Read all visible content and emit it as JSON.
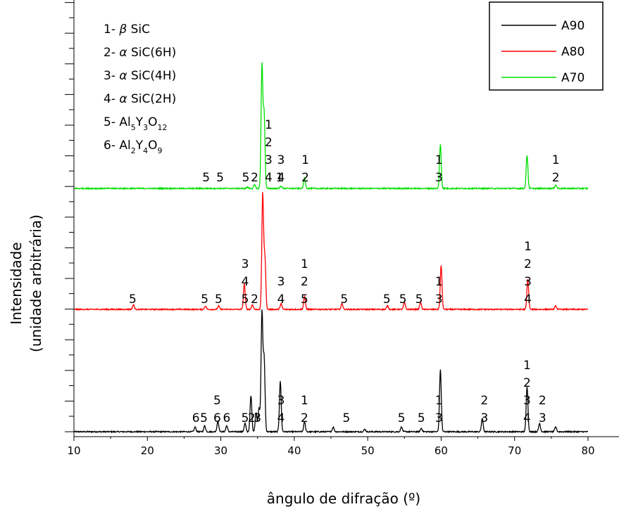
{
  "chart_data": {
    "type": "line",
    "xlabel": "ângulo de difração (º)",
    "ylabel_line1": "Intensidade",
    "ylabel_line2": "(unidade arbitrária)",
    "xlim": [
      10,
      80
    ],
    "xticks": [
      "10",
      "20",
      "30",
      "40",
      "50",
      "60",
      "70",
      "80"
    ],
    "legend": {
      "placement": "top-right"
    },
    "phase_list": [
      {
        "num": "1-",
        "greek": "β",
        "rest": "SiC"
      },
      {
        "num": "2-",
        "greek": "α",
        "rest": "SiC(6H)"
      },
      {
        "num": "3-",
        "greek": "α",
        "rest": "SiC(4H)"
      },
      {
        "num": "4-",
        "greek": "α",
        "rest": "SiC(2H)"
      },
      {
        "num": "5-",
        "formula": [
          [
            "Al",
            ""
          ],
          [
            "5",
            "sub"
          ],
          [
            "Y",
            ""
          ],
          [
            "3",
            "sub"
          ],
          [
            "O",
            ""
          ],
          [
            "12",
            "sub"
          ]
        ]
      },
      {
        "num": "6-",
        "formula": [
          [
            "Al",
            ""
          ],
          [
            "2",
            "sub"
          ],
          [
            "Y",
            ""
          ],
          [
            "4",
            "sub"
          ],
          [
            "O",
            ""
          ],
          [
            "9",
            "sub"
          ]
        ]
      }
    ],
    "series": [
      {
        "name": "A90",
        "color": "#000000",
        "peaks": [
          [
            26.5,
            0.04
          ],
          [
            27.8,
            0.05
          ],
          [
            29.6,
            0.09
          ],
          [
            30.8,
            0.05
          ],
          [
            33.3,
            0.07
          ],
          [
            34.1,
            0.3
          ],
          [
            34.8,
            0.16
          ],
          [
            35.2,
            0.2
          ],
          [
            35.6,
            1.0
          ],
          [
            35.9,
            0.6
          ],
          [
            38.1,
            0.42
          ],
          [
            41.4,
            0.08
          ],
          [
            45.3,
            0.04
          ],
          [
            49.6,
            0.02
          ],
          [
            54.6,
            0.04
          ],
          [
            57.3,
            0.03
          ],
          [
            59.9,
            0.52
          ],
          [
            65.6,
            0.11
          ],
          [
            71.7,
            0.38
          ],
          [
            73.4,
            0.07
          ],
          [
            75.6,
            0.04
          ]
        ],
        "labels": [
          [
            26.6,
            "6"
          ],
          [
            27.7,
            "5"
          ],
          [
            29.5,
            "6"
          ],
          [
            29.5,
            "5"
          ],
          [
            30.8,
            "6"
          ],
          [
            33.3,
            "5"
          ],
          [
            34.2,
            "2"
          ],
          [
            35.0,
            "3"
          ],
          [
            38.2,
            "4"
          ],
          [
            38.2,
            "3"
          ],
          [
            41.4,
            "2"
          ],
          [
            41.4,
            "1"
          ],
          [
            47.1,
            "5"
          ],
          [
            54.6,
            "5"
          ],
          [
            57.3,
            "5"
          ],
          [
            59.7,
            "3"
          ],
          [
            59.7,
            "1"
          ],
          [
            65.9,
            "3"
          ],
          [
            65.9,
            "2"
          ],
          [
            71.7,
            "4"
          ],
          [
            71.7,
            "3"
          ],
          [
            71.7,
            "2"
          ],
          [
            71.7,
            "1"
          ],
          [
            73.8,
            "3"
          ],
          [
            73.8,
            "2"
          ]
        ]
      },
      {
        "name": "A80",
        "color": "#ff0000",
        "peaks": [
          [
            18.1,
            0.04
          ],
          [
            27.9,
            0.03
          ],
          [
            29.7,
            0.03
          ],
          [
            33.2,
            0.22
          ],
          [
            34.3,
            0.04
          ],
          [
            35.7,
            0.99
          ],
          [
            36.0,
            0.44
          ],
          [
            38.2,
            0.05
          ],
          [
            41.4,
            0.11
          ],
          [
            46.5,
            0.05
          ],
          [
            52.7,
            0.03
          ],
          [
            55.0,
            0.06
          ],
          [
            57.2,
            0.06
          ],
          [
            60.0,
            0.38
          ],
          [
            71.8,
            0.26
          ],
          [
            75.6,
            0.03
          ]
        ],
        "labels": [
          [
            18.0,
            "5"
          ],
          [
            27.8,
            "5"
          ],
          [
            29.7,
            "5"
          ],
          [
            33.3,
            "5"
          ],
          [
            33.3,
            "4"
          ],
          [
            33.3,
            "3"
          ],
          [
            34.6,
            "2"
          ],
          [
            38.2,
            "4"
          ],
          [
            38.2,
            "3"
          ],
          [
            41.4,
            "5"
          ],
          [
            41.4,
            "2"
          ],
          [
            41.4,
            "1"
          ],
          [
            46.8,
            "5"
          ],
          [
            52.6,
            "5"
          ],
          [
            54.8,
            "5"
          ],
          [
            57.0,
            "5"
          ],
          [
            59.7,
            "3"
          ],
          [
            59.7,
            "1"
          ],
          [
            71.8,
            "4"
          ],
          [
            71.8,
            "3"
          ],
          [
            71.8,
            "2"
          ],
          [
            71.8,
            "1"
          ]
        ]
      },
      {
        "name": "A70",
        "color": "#00e000",
        "peaks": [
          [
            33.6,
            0.01
          ],
          [
            34.6,
            0.03
          ],
          [
            35.6,
            1.0
          ],
          [
            35.9,
            0.6
          ],
          [
            38.2,
            0.02
          ],
          [
            41.4,
            0.09
          ],
          [
            59.9,
            0.36
          ],
          [
            71.7,
            0.27
          ],
          [
            75.6,
            0.03
          ]
        ],
        "labels": [
          [
            28.0,
            "5"
          ],
          [
            29.9,
            "5"
          ],
          [
            33.4,
            "5"
          ],
          [
            34.6,
            "2"
          ],
          [
            36.5,
            "4"
          ],
          [
            36.5,
            "3"
          ],
          [
            36.5,
            "2"
          ],
          [
            36.5,
            "1"
          ],
          [
            38.0,
            "1"
          ],
          [
            38.2,
            "4"
          ],
          [
            38.2,
            "3"
          ],
          [
            41.5,
            "2"
          ],
          [
            41.5,
            "1"
          ],
          [
            59.7,
            "3"
          ],
          [
            59.7,
            "1"
          ],
          [
            75.6,
            "2"
          ],
          [
            75.6,
            "1"
          ]
        ]
      }
    ]
  }
}
